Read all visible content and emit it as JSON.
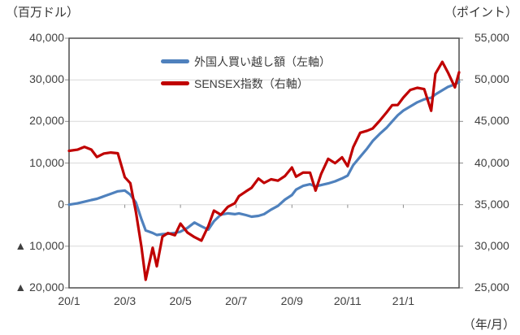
{
  "header": {
    "left_unit": "（百万ドル）",
    "right_unit": "（ポイント）",
    "x_unit": "（年/月）"
  },
  "legend": {
    "items": [
      {
        "id": "foreign",
        "label": "外国人買い越し額（左軸）",
        "color": "#4f81bd"
      },
      {
        "id": "sensex",
        "label": "SENSEX指数（右軸）",
        "color": "#c00000"
      }
    ]
  },
  "colors": {
    "grid": "#d9d9d9",
    "frame": "#4d4d4d",
    "axis_tick": "#8c8c8c",
    "tick_text": "#404040"
  },
  "chart_data": {
    "type": "line",
    "title": "",
    "x_unit_label": "（年/月）",
    "x_range_months_from_2020_01": [
      0,
      14
    ],
    "x_ticks": [
      {
        "pos": 0,
        "label": "20/1"
      },
      {
        "pos": 2,
        "label": "20/3"
      },
      {
        "pos": 4,
        "label": "20/5"
      },
      {
        "pos": 6,
        "label": "20/7"
      },
      {
        "pos": 8,
        "label": "20/9"
      },
      {
        "pos": 10,
        "label": "20/11"
      },
      {
        "pos": 12,
        "label": "21/1"
      }
    ],
    "category_tick_positions": [
      0,
      2,
      4,
      6,
      8,
      10,
      12,
      14
    ],
    "left_axis": {
      "unit": "（百万ドル）",
      "range": [
        -20000,
        40000
      ],
      "ticks": [
        {
          "value": 40000,
          "label": "40,000"
        },
        {
          "value": 30000,
          "label": "30,000"
        },
        {
          "value": 20000,
          "label": "20,000"
        },
        {
          "value": 10000,
          "label": "10,000"
        },
        {
          "value": 0,
          "label": "0"
        },
        {
          "value": -10000,
          "label": "▲ 10,000"
        },
        {
          "value": -20000,
          "label": "▲ 20,000"
        }
      ]
    },
    "right_axis": {
      "unit": "（ポイント）",
      "range": [
        25000,
        55000
      ],
      "ticks": [
        {
          "value": 55000,
          "label": "55,000"
        },
        {
          "value": 50000,
          "label": "50,000"
        },
        {
          "value": 45000,
          "label": "45,000"
        },
        {
          "value": 40000,
          "label": "40,000"
        },
        {
          "value": 35000,
          "label": "35,000"
        },
        {
          "value": 30000,
          "label": "30,000"
        },
        {
          "value": 25000,
          "label": "25,000"
        }
      ]
    },
    "grid_values_left": [
      30000,
      20000,
      10000,
      0,
      -10000
    ],
    "x": [
      0,
      0.3,
      0.55,
      0.8,
      1.0,
      1.25,
      1.5,
      1.75,
      2.0,
      2.2,
      2.4,
      2.6,
      2.75,
      3.0,
      3.15,
      3.35,
      3.55,
      3.8,
      4.0,
      4.25,
      4.5,
      4.75,
      5.0,
      5.2,
      5.45,
      5.7,
      5.95,
      6.1,
      6.35,
      6.55,
      6.8,
      7.0,
      7.25,
      7.5,
      7.75,
      8.0,
      8.15,
      8.4,
      8.65,
      8.85,
      9.05,
      9.3,
      9.55,
      9.8,
      10.0,
      10.2,
      10.45,
      10.7,
      10.9,
      11.15,
      11.4,
      11.6,
      11.8,
      12.0,
      12.25,
      12.5,
      12.75,
      13.0,
      13.15,
      13.4,
      13.6,
      13.85,
      14.0
    ],
    "series": [
      {
        "name": "外国人買い越し額（左軸）",
        "axis": "left",
        "color": "#4f81bd",
        "stroke_width": 3.2,
        "values": [
          0,
          300,
          700,
          1100,
          1400,
          2000,
          2600,
          3200,
          3400,
          2400,
          500,
          -3500,
          -6200,
          -6800,
          -7300,
          -7100,
          -7000,
          -6800,
          -6500,
          -5600,
          -4300,
          -5200,
          -6000,
          -4000,
          -2400,
          -2100,
          -2300,
          -2100,
          -2500,
          -2900,
          -2700,
          -2300,
          -1200,
          -300,
          1200,
          2300,
          3600,
          4500,
          4900,
          4400,
          4700,
          5100,
          5600,
          6300,
          7000,
          9500,
          11500,
          13500,
          15300,
          17000,
          18500,
          20000,
          21500,
          22600,
          23600,
          24600,
          25300,
          25700,
          26500,
          27500,
          28300,
          28900,
          29500
        ]
      },
      {
        "name": "SENSEX指数（右軸）",
        "axis": "right",
        "color": "#c00000",
        "stroke_width": 3.2,
        "values": [
          41465,
          41600,
          41945,
          41613,
          40723,
          41142,
          41258,
          41170,
          38297,
          37577,
          34103,
          29916,
          25981,
          29816,
          27591,
          31160,
          31589,
          31327,
          32718,
          31643,
          31098,
          30673,
          32424,
          34287,
          33781,
          34732,
          35171,
          36021,
          36594,
          37020,
          38129,
          37607,
          38041,
          37877,
          38435,
          39467,
          38357,
          38855,
          38846,
          36686,
          38697,
          40509,
          39982,
          40686,
          39614,
          41893,
          43637,
          43882,
          44150,
          45080,
          46099,
          46961,
          46974,
          47869,
          48783,
          49035,
          48879,
          46286,
          50732,
          52154,
          50890,
          49100,
          50905
        ]
      }
    ]
  }
}
